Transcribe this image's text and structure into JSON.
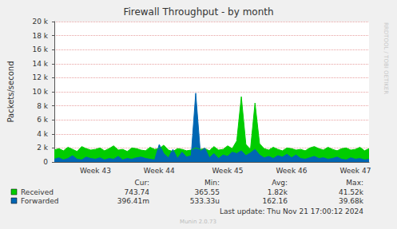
{
  "chart_data": {
    "type": "area",
    "title": "Firewall Throughput - by month",
    "y_label": "Packets/second",
    "categories": [
      null,
      null,
      null,
      null,
      null,
      null,
      null,
      null,
      null,
      "Week 43",
      null,
      null,
      null,
      null,
      null,
      null,
      null,
      null,
      null,
      null,
      null,
      null,
      null,
      "Week 44",
      null,
      null,
      null,
      null,
      null,
      null,
      null,
      null,
      null,
      null,
      null,
      null,
      null,
      null,
      "Week 45",
      null,
      null,
      null,
      null,
      null,
      null,
      null,
      null,
      null,
      null,
      null,
      null,
      null,
      "Week 46",
      null,
      null,
      null,
      null,
      null,
      null,
      null,
      null,
      null,
      null,
      null,
      null,
      null,
      "Week 47",
      null,
      null,
      null
    ],
    "series": [
      {
        "name": "Received",
        "color": "#00cc00",
        "values": [
          1700,
          1900,
          1600,
          2100,
          1800,
          1500,
          2200,
          1900,
          1700,
          1800,
          2000,
          1600,
          1900,
          2300,
          1700,
          1800,
          1500,
          2000,
          1900,
          1700,
          1600,
          2100,
          1800,
          1900,
          2400,
          1700,
          1500,
          1900,
          1800,
          1600,
          1700,
          2000,
          1800,
          1900,
          1600,
          2200,
          1700,
          1800,
          2300,
          1900,
          3000,
          9300,
          2500,
          1800,
          8400,
          2600,
          1900,
          1700,
          2100,
          1800,
          1600,
          2000,
          1900,
          1700,
          1800,
          1600,
          2000,
          2200,
          1900,
          1700,
          2100,
          1800,
          1600,
          1900,
          2000,
          1700,
          1800,
          2100,
          1600,
          1900
        ]
      },
      {
        "name": "Forwarded",
        "color": "#0066b3",
        "values": [
          400,
          600,
          300,
          500,
          900,
          400,
          300,
          700,
          500,
          400,
          600,
          300,
          500,
          400,
          800,
          300,
          500,
          400,
          600,
          700,
          500,
          400,
          300,
          2500,
          1200,
          600,
          1800,
          500,
          1400,
          700,
          900,
          9800,
          1500,
          2000,
          600,
          1200,
          500,
          1000,
          800,
          1400,
          1200,
          1600,
          900,
          1300,
          1800,
          1000,
          600,
          800,
          500,
          900,
          700,
          1100,
          600,
          1000,
          500,
          400,
          600,
          800,
          500,
          600,
          400,
          500,
          700,
          400,
          300,
          600,
          400,
          500,
          300,
          400
        ]
      }
    ],
    "ylim": [
      0,
      20000
    ],
    "yticks": [
      0,
      {
        "value": 2000,
        "label": "2 k"
      },
      {
        "value": 4000,
        "label": "4 k"
      },
      {
        "value": 6000,
        "label": "6 k"
      },
      {
        "value": 8000,
        "label": "8 k"
      },
      {
        "value": 10000,
        "label": "10 k"
      },
      {
        "value": 12000,
        "label": "12 k"
      },
      {
        "value": 14000,
        "label": "14 k"
      },
      {
        "value": 16000,
        "label": "16 k"
      },
      {
        "value": 18000,
        "label": "18 k"
      },
      {
        "value": 20000,
        "label": "20 k"
      }
    ],
    "grid": true,
    "stats": {
      "columns": [
        "Cur:",
        "Min:",
        "Avg:",
        "Max:"
      ],
      "rows": [
        [
          "743.74",
          "365.55",
          "1.82k",
          "41.52k"
        ],
        [
          "396.41m",
          "533.33u",
          "162.16",
          "39.68k"
        ]
      ]
    },
    "last_update": "Last update: Thu Nov 21 17:00:12 2024",
    "footer": "Munin 2.0.73",
    "side_text": "RRDTOOL / TOBI OETIKER"
  }
}
